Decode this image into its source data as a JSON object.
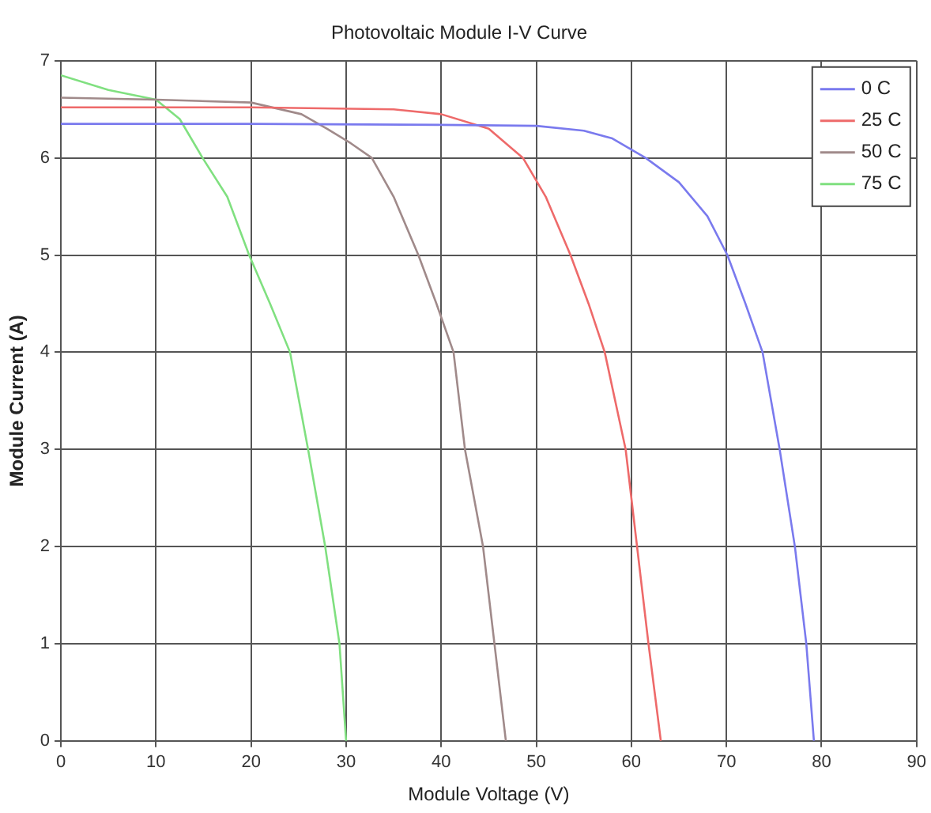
{
  "chart_data": {
    "type": "line",
    "title": "Photovoltaic Module I-V Curve",
    "xlabel": "Module Voltage (V)",
    "ylabel": "Module Current (A)",
    "xlim": [
      0,
      90
    ],
    "xticks": [
      0,
      10,
      20,
      30,
      40,
      50,
      60,
      70,
      80,
      90
    ],
    "ylim": [
      0,
      7
    ],
    "yticks": [
      0,
      1,
      2,
      3,
      4,
      5,
      6,
      7
    ],
    "grid": true,
    "legend": "top right",
    "marker": "none",
    "line_style": "solid",
    "series": [
      {
        "name": "0 C",
        "color": "#7a7aee",
        "x": [
          0,
          20,
          40,
          50,
          55,
          58,
          61.5,
          65,
          68,
          70.1,
          72,
          73.8,
          75.6,
          77.2,
          78.4,
          79.2
        ],
        "values": [
          6.35,
          6.35,
          6.34,
          6.33,
          6.28,
          6.2,
          6,
          5.75,
          5.4,
          5,
          4.5,
          4,
          3,
          2,
          1,
          0
        ]
      },
      {
        "name": "25 C",
        "color": "#ee6a6a",
        "x": [
          0,
          20,
          35,
          40,
          45,
          48.6,
          51,
          53.6,
          55.5,
          57.2,
          59.4,
          60.6,
          61.8,
          63.1
        ],
        "values": [
          6.52,
          6.52,
          6.5,
          6.45,
          6.3,
          6,
          5.6,
          5,
          4.5,
          4,
          3,
          2,
          1,
          0
        ]
      },
      {
        "name": "50 C",
        "color": "#a08a8a",
        "x": [
          0,
          10,
          20,
          25.3,
          28,
          30.5,
          32.7,
          35,
          37.6,
          39.5,
          41.3,
          42.5,
          44.4,
          45.6,
          46.8
        ],
        "values": [
          6.62,
          6.6,
          6.57,
          6.45,
          6.3,
          6.15,
          6,
          5.6,
          5,
          4.5,
          4,
          3,
          2,
          1,
          0
        ]
      },
      {
        "name": "75 C",
        "color": "#80e080",
        "x": [
          0,
          5,
          10,
          12.5,
          14.9,
          17.5,
          19.8,
          22,
          24.1,
          26,
          27.8,
          29.3,
          30
        ],
        "values": [
          6.85,
          6.7,
          6.6,
          6.4,
          6,
          5.6,
          5,
          4.5,
          4,
          3,
          2,
          1,
          0
        ]
      }
    ]
  }
}
